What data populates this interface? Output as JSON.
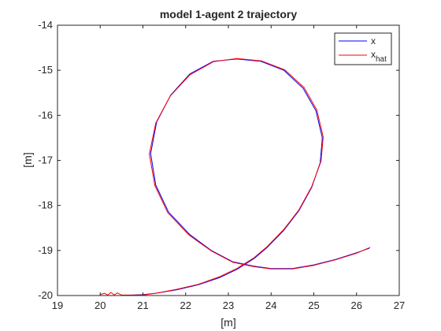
{
  "chart_data": {
    "type": "line",
    "title": "model 1-agent 2 trajectory",
    "xlabel": "[m]",
    "ylabel": "[m]",
    "xlim": [
      19,
      27
    ],
    "ylim": [
      -20,
      -14
    ],
    "xticks": [
      19,
      20,
      21,
      22,
      23,
      24,
      25,
      26,
      27
    ],
    "yticks": [
      -14,
      -15,
      -16,
      -17,
      -18,
      -19,
      -20
    ],
    "xtick_labels": [
      "19",
      "20",
      "21",
      "22",
      "23",
      "24",
      "25",
      "26",
      "27"
    ],
    "ytick_labels": [
      "-14",
      "-15",
      "-16",
      "-17",
      "-18",
      "-19",
      "-20"
    ],
    "grid": false,
    "legend_position": "top-right",
    "legend": {
      "x_label": "x",
      "xhat_base": "x",
      "xhat_sub": "hat"
    },
    "series": [
      {
        "key": "x",
        "color": "#0000ff",
        "points": [
          [
            20.0,
            -20.0
          ],
          [
            20.5,
            -20.0
          ],
          [
            21.0,
            -19.98
          ],
          [
            21.3,
            -19.95
          ],
          [
            21.8,
            -19.87
          ],
          [
            22.3,
            -19.76
          ],
          [
            22.8,
            -19.6
          ],
          [
            23.2,
            -19.42
          ],
          [
            23.6,
            -19.18
          ],
          [
            23.9,
            -18.94
          ],
          [
            24.3,
            -18.55
          ],
          [
            24.65,
            -18.12
          ],
          [
            24.95,
            -17.6
          ],
          [
            25.15,
            -17.05
          ],
          [
            25.2,
            -16.5
          ],
          [
            25.05,
            -15.9
          ],
          [
            24.75,
            -15.4
          ],
          [
            24.3,
            -15.0
          ],
          [
            23.75,
            -14.8
          ],
          [
            23.2,
            -14.75
          ],
          [
            22.65,
            -14.8
          ],
          [
            22.1,
            -15.08
          ],
          [
            21.65,
            -15.55
          ],
          [
            21.32,
            -16.15
          ],
          [
            21.18,
            -16.85
          ],
          [
            21.3,
            -17.55
          ],
          [
            21.6,
            -18.15
          ],
          [
            22.1,
            -18.65
          ],
          [
            22.6,
            -19.0
          ],
          [
            23.1,
            -19.25
          ],
          [
            23.6,
            -19.35
          ],
          [
            24.0,
            -19.4
          ],
          [
            24.5,
            -19.4
          ],
          [
            25.0,
            -19.32
          ],
          [
            25.5,
            -19.2
          ],
          [
            26.0,
            -19.05
          ],
          [
            26.3,
            -18.95
          ]
        ]
      },
      {
        "key": "xhat",
        "color": "#ff0000",
        "points": [
          [
            20.0,
            -19.98
          ],
          [
            20.1,
            -19.95
          ],
          [
            20.18,
            -19.99
          ],
          [
            20.25,
            -19.93
          ],
          [
            20.33,
            -19.99
          ],
          [
            20.4,
            -19.94
          ],
          [
            20.5,
            -19.99
          ],
          [
            21.0,
            -19.99
          ],
          [
            21.3,
            -19.95
          ],
          [
            21.8,
            -19.86
          ],
          [
            22.3,
            -19.75
          ],
          [
            22.8,
            -19.58
          ],
          [
            23.2,
            -19.4
          ],
          [
            23.6,
            -19.16
          ],
          [
            23.9,
            -18.92
          ],
          [
            24.3,
            -18.53
          ],
          [
            24.65,
            -18.1
          ],
          [
            24.95,
            -17.58
          ],
          [
            25.17,
            -17.02
          ],
          [
            25.22,
            -16.48
          ],
          [
            25.07,
            -15.88
          ],
          [
            24.77,
            -15.38
          ],
          [
            24.32,
            -14.99
          ],
          [
            23.77,
            -14.79
          ],
          [
            23.2,
            -14.74
          ],
          [
            22.65,
            -14.81
          ],
          [
            22.1,
            -15.1
          ],
          [
            21.64,
            -15.57
          ],
          [
            21.3,
            -16.17
          ],
          [
            21.15,
            -16.86
          ],
          [
            21.28,
            -17.56
          ],
          [
            21.58,
            -18.16
          ],
          [
            22.08,
            -18.66
          ],
          [
            22.6,
            -19.01
          ],
          [
            23.1,
            -19.26
          ],
          [
            23.6,
            -19.36
          ],
          [
            24.0,
            -19.41
          ],
          [
            24.5,
            -19.41
          ],
          [
            25.0,
            -19.33
          ],
          [
            25.5,
            -19.21
          ],
          [
            26.0,
            -19.06
          ],
          [
            26.32,
            -18.93
          ]
        ]
      }
    ]
  }
}
